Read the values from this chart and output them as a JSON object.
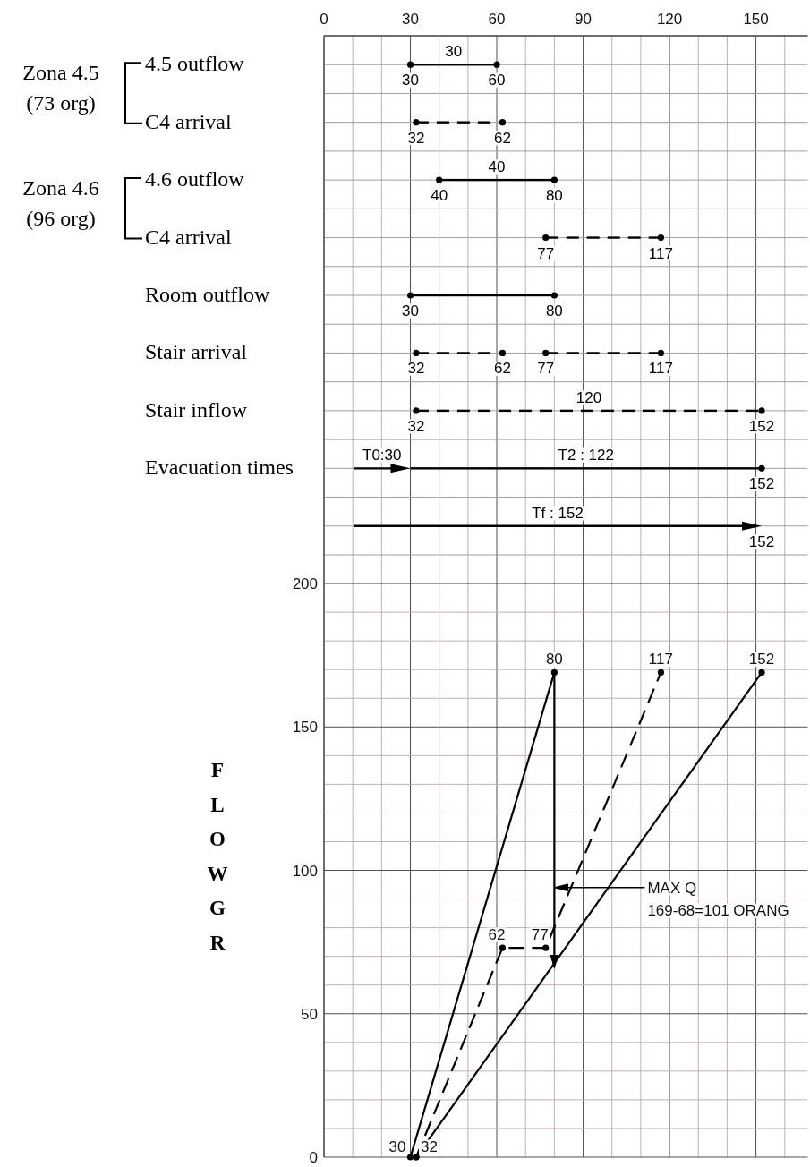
{
  "chart_data": [
    {
      "type": "bar",
      "orientation": "horizontal",
      "categories": [
        "4.5 outflow",
        "C4 arrival",
        "4.6 outflow",
        "C4 arrival",
        "Room outflow",
        "Stair arrival",
        "Stair inflow",
        "Evacuation times",
        null
      ],
      "xlim": [
        0,
        168
      ],
      "xticks": [
        0,
        {
          "value": 10,
          "label": null
        },
        {
          "value": 20,
          "label": null
        },
        30,
        {
          "value": 40,
          "label": null
        },
        {
          "value": 50,
          "label": null
        },
        60,
        {
          "value": 70,
          "label": null
        },
        {
          "value": 80,
          "label": null
        },
        90,
        {
          "value": 100,
          "label": null
        },
        {
          "value": 110,
          "label": null
        },
        120,
        {
          "value": 130,
          "label": null
        },
        {
          "value": 140,
          "label": null
        },
        150,
        {
          "value": 160,
          "label": null
        }
      ],
      "grid": true,
      "marker": "circle",
      "annotations": [
        "Zona 4.5\n(73 org)",
        "Zona 4.6\n(96 org)",
        {
          "text": "T0:30",
          "x": 30,
          "y": "Evacuation times"
        },
        "Tf : 152",
        {
          "text": "152",
          "x": 152
        }
      ],
      "series": [
        {
          "color": "#000000",
          "line_style": "solid",
          "base": [
            30,
            null,
            40,
            null,
            30,
            null,
            null,
            30,
            null
          ],
          "values": [
            30,
            null,
            40,
            null,
            50,
            null,
            null,
            122,
            null
          ],
          "value_labels": [
            "30",
            null,
            "40",
            null,
            null,
            null,
            null,
            "T2 : 122",
            null
          ]
        },
        {
          "color": "#000000",
          "line_style": "dashed",
          "base": [
            null,
            32,
            null,
            77,
            null,
            32,
            32,
            null,
            null
          ],
          "values": [
            null,
            30,
            null,
            40,
            null,
            30,
            120,
            null,
            null
          ],
          "value_labels": [
            null,
            null,
            null,
            null,
            null,
            null,
            "120",
            null,
            null
          ]
        },
        {
          "color": "#000000",
          "line_style": "dashed",
          "base": [
            null,
            null,
            null,
            null,
            null,
            77,
            null,
            null,
            null
          ],
          "values": [
            null,
            null,
            null,
            null,
            null,
            40,
            null,
            null,
            null
          ]
        },
        {
          "type": "scatter",
          "color": "#000000",
          "values": [
            30,
            32,
            40,
            77,
            30,
            32,
            32,
            null,
            null
          ],
          "value_labels": [
            "30",
            "32",
            "40",
            "77",
            "30",
            "32",
            "32",
            null,
            null
          ]
        },
        {
          "type": "scatter",
          "color": "#000000",
          "values": [
            60,
            62,
            80,
            117,
            80,
            62,
            152,
            152,
            null
          ],
          "value_labels": [
            "60",
            "62",
            "80",
            "117",
            "80",
            "62",
            "152",
            "152",
            null
          ]
        },
        {
          "type": "scatter",
          "color": "#000000",
          "values": [
            null,
            null,
            null,
            null,
            null,
            77,
            null,
            null,
            null
          ],
          "value_labels": [
            null,
            null,
            null,
            null,
            null,
            "77",
            null,
            null,
            null
          ]
        },
        {
          "type": "scatter",
          "color": "#000000",
          "values": [
            null,
            null,
            null,
            null,
            null,
            117,
            null,
            null,
            null
          ],
          "value_labels": [
            null,
            null,
            null,
            null,
            null,
            "117",
            null,
            null,
            null
          ]
        }
      ]
    },
    {
      "type": "line",
      "xlim": [
        0,
        168
      ],
      "xticks": [
        0,
        {
          "value": 10,
          "label": null
        },
        {
          "value": 20,
          "label": null
        },
        30,
        {
          "value": 40,
          "label": null
        },
        {
          "value": 50,
          "label": null
        },
        60,
        {
          "value": 70,
          "label": null
        },
        {
          "value": 80,
          "label": null
        },
        90,
        {
          "value": 100,
          "label": null
        },
        {
          "value": 110,
          "label": null
        },
        120,
        {
          "value": 130,
          "label": null
        },
        {
          "value": 140,
          "label": null
        },
        150,
        {
          "value": 160,
          "label": null
        }
      ],
      "ylim": [
        0,
        210
      ],
      "yticks": [
        0,
        {
          "value": 10,
          "label": null
        },
        {
          "value": 20,
          "label": null
        },
        {
          "value": 30,
          "label": null
        },
        {
          "value": 40,
          "label": null
        },
        50,
        {
          "value": 60,
          "label": null
        },
        {
          "value": 70,
          "label": null
        },
        {
          "value": 80,
          "label": null
        },
        {
          "value": 90,
          "label": null
        },
        100,
        {
          "value": 110,
          "label": null
        },
        {
          "value": 120,
          "label": null
        },
        {
          "value": 130,
          "label": null
        },
        {
          "value": 140,
          "label": null
        },
        150,
        {
          "value": 160,
          "label": null
        },
        {
          "value": 170,
          "label": null
        },
        {
          "value": 180,
          "label": null
        },
        {
          "value": 190,
          "label": null
        },
        200
      ],
      "tick_labels": "y",
      "grid": true,
      "marker": "circle",
      "ylabel": "FLOWGR",
      "annotations": [
        {
          "text": "MAX Q\n169-68=101 ORANG",
          "x": 80,
          "y": 94
        },
        {
          "text": "30",
          "x": 30,
          "y": 0
        },
        {
          "text": "32",
          "x": 32,
          "y": 0
        },
        {
          "text": "62",
          "x": 62,
          "y": 73
        },
        {
          "text": "77",
          "x": 77,
          "y": 73
        },
        {
          "text": "80",
          "x": 80,
          "y": 169
        },
        {
          "text": "117",
          "x": 117,
          "y": 169
        },
        {
          "text": "152",
          "x": 152,
          "y": 169
        }
      ],
      "series": [
        {
          "color": "#000000",
          "line_style": "solid",
          "x": [
            30,
            80
          ],
          "values": [
            0,
            169
          ]
        },
        {
          "color": "#000000",
          "line_style": "dashed",
          "x": [
            32,
            62,
            77,
            117
          ],
          "values": [
            0,
            73,
            73,
            169
          ]
        },
        {
          "color": "#000000",
          "line_style": "solid",
          "x": [
            32,
            152
          ],
          "values": [
            0,
            169
          ]
        },
        {
          "color": "#000000",
          "line_style": "solid",
          "marker": "triangle",
          "x": [
            80,
            80
          ],
          "values": [
            169,
            68
          ]
        }
      ]
    }
  ]
}
